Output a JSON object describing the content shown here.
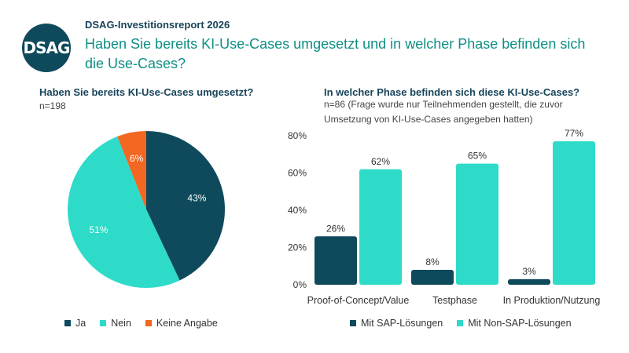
{
  "header": {
    "logo_text": "DSAG",
    "report_title": "DSAG-Investitionsreport 2026",
    "main_question": "Haben Sie bereits KI-Use-Cases umgesetzt und in welcher Phase befinden sich die Use-Cases?"
  },
  "left_panel": {
    "question": "Haben Sie bereits KI-Use-Cases umgesetzt?",
    "n_text": "n=198"
  },
  "right_panel": {
    "question": "In welcher Phase befinden sich diese KI-Use-Cases?",
    "n_text": "n=86 (Frage wurde nur Teilnehmenden gestellt, die zuvor Umsetzung von KI-Use-Cases angegeben hatten)"
  },
  "chart_data": [
    {
      "type": "pie",
      "labels": [
        "Ja",
        "Nein",
        "Keine Angabe"
      ],
      "values": [
        43,
        51,
        6
      ],
      "value_labels": [
        "43%",
        "51%",
        "6%"
      ],
      "colors": [
        "#0e4a5c",
        "#2edbc9",
        "#f26722"
      ],
      "legend_position": "bottom"
    },
    {
      "type": "bar",
      "categories": [
        "Proof-of-Concept/Value",
        "Testphase",
        "In Produktion/Nutzung"
      ],
      "series": [
        {
          "name": "Mit SAP-Lösungen",
          "values": [
            26,
            8,
            3
          ],
          "labels": [
            "26%",
            "8%",
            "3%"
          ],
          "color": "#0e4a5c"
        },
        {
          "name": "Mit Non-SAP-Lösungen",
          "values": [
            62,
            65,
            77
          ],
          "labels": [
            "62%",
            "65%",
            "77%"
          ],
          "color": "#2edbc9"
        }
      ],
      "yticks": [
        "0%",
        "20%",
        "40%",
        "60%",
        "80%"
      ],
      "ylim": [
        0,
        80
      ],
      "grid": false,
      "legend_position": "bottom"
    }
  ]
}
